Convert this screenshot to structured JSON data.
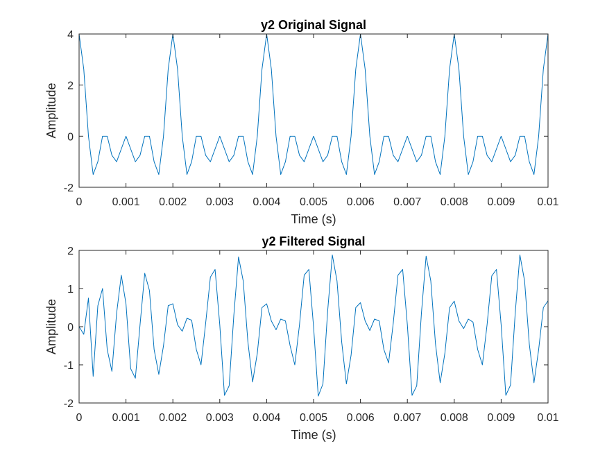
{
  "colors": {
    "series": "#0072bd",
    "axis": "#262626",
    "background": "#ffffff"
  },
  "chart_data": [
    {
      "type": "line",
      "title": "y2 Original Signal",
      "xlabel": "Time (s)",
      "ylabel": "Amplitude",
      "xlim": [
        0,
        0.01
      ],
      "ylim": [
        -2,
        4
      ],
      "xticks": [
        0,
        0.001,
        0.002,
        0.003,
        0.004,
        0.005,
        0.006,
        0.007,
        0.008,
        0.009,
        0.01
      ],
      "xtick_labels": [
        "0",
        "0.001",
        "0.002",
        "0.003",
        "0.004",
        "0.005",
        "0.006",
        "0.007",
        "0.008",
        "0.009",
        "0.01"
      ],
      "yticks": [
        -2,
        0,
        2,
        4
      ],
      "ytick_labels": [
        "-2",
        "0",
        "2",
        "4"
      ],
      "grid": false,
      "series": [
        {
          "x": [
            0,
            0.0001,
            0.0002,
            0.0003,
            0.0004,
            0.0005,
            0.0006,
            0.0007,
            0.0008,
            0.0009,
            0.001,
            0.0011,
            0.0012,
            0.0013,
            0.0014,
            0.0015,
            0.0016,
            0.0017,
            0.0018,
            0.0019,
            0.002,
            0.0021,
            0.0022,
            0.0023,
            0.0024,
            0.0025,
            0.0026,
            0.0027,
            0.0028,
            0.0029,
            0.003,
            0.0031,
            0.0032,
            0.0033,
            0.0034,
            0.0035,
            0.0036,
            0.0037,
            0.0038,
            0.0039,
            0.004,
            0.0041,
            0.0042,
            0.0043,
            0.0044,
            0.0045,
            0.0046,
            0.0047,
            0.0048,
            0.0049,
            0.005,
            0.0051,
            0.0052,
            0.0053,
            0.0054,
            0.0055,
            0.0056,
            0.0057,
            0.0058,
            0.0059,
            0.006,
            0.0061,
            0.0062,
            0.0063,
            0.0064,
            0.0065,
            0.0066,
            0.0067,
            0.0068,
            0.0069,
            0.007,
            0.0071,
            0.0072,
            0.0073,
            0.0074,
            0.0075,
            0.0076,
            0.0077,
            0.0078,
            0.0079,
            0.008,
            0.0081,
            0.0082,
            0.0083,
            0.0084,
            0.0085,
            0.0086,
            0.0087,
            0.0088,
            0.0089,
            0.009,
            0.0091,
            0.0092,
            0.0093,
            0.0094,
            0.0095,
            0.0096,
            0.0097,
            0.0098,
            0.0099,
            0.01
          ],
          "y": [
            4,
            2.62,
            0,
            -1.5,
            -1,
            0,
            0,
            -0.75,
            -1,
            -0.5,
            0,
            -0.5,
            -1,
            -0.75,
            0,
            0,
            -1,
            -1.5,
            0,
            2.62,
            4,
            2.62,
            0,
            -1.5,
            -1,
            0,
            0,
            -0.75,
            -1,
            -0.5,
            0,
            -0.5,
            -1,
            -0.75,
            0,
            0,
            -1,
            -1.5,
            0,
            2.62,
            4,
            2.62,
            0,
            -1.5,
            -1,
            0,
            0,
            -0.75,
            -1,
            -0.5,
            0,
            -0.5,
            -1,
            -0.75,
            0,
            0,
            -1,
            -1.5,
            0,
            2.62,
            4,
            2.62,
            0,
            -1.5,
            -1,
            0,
            0,
            -0.75,
            -1,
            -0.5,
            0,
            -0.5,
            -1,
            -0.75,
            0,
            0,
            -1,
            -1.5,
            0,
            2.62,
            4,
            2.62,
            0,
            -1.5,
            -1,
            0,
            0,
            -0.75,
            -1,
            -0.5,
            0,
            -0.5,
            -1,
            -0.75,
            0,
            0,
            -1,
            -1.5,
            0,
            2.62,
            4
          ]
        }
      ]
    },
    {
      "type": "line",
      "title": "y2 Filtered Signal",
      "xlabel": "Time (s)",
      "ylabel": "Amplitude",
      "xlim": [
        0,
        0.01
      ],
      "ylim": [
        -2,
        2
      ],
      "xticks": [
        0,
        0.001,
        0.002,
        0.003,
        0.004,
        0.005,
        0.006,
        0.007,
        0.008,
        0.009,
        0.01
      ],
      "xtick_labels": [
        "0",
        "0.001",
        "0.002",
        "0.003",
        "0.004",
        "0.005",
        "0.006",
        "0.007",
        "0.008",
        "0.009",
        "0.01"
      ],
      "yticks": [
        -2,
        -1,
        0,
        1,
        2
      ],
      "ytick_labels": [
        "-2",
        "-1",
        "0",
        "1",
        "2"
      ],
      "grid": false,
      "series": [
        {
          "x": [
            0,
            0.0001,
            0.0002,
            0.0003,
            0.0004,
            0.0005,
            0.0006,
            0.0007,
            0.0008,
            0.0009,
            0.001,
            0.0011,
            0.0012,
            0.0013,
            0.0014,
            0.0015,
            0.0016,
            0.0017,
            0.0018,
            0.0019,
            0.002,
            0.0021,
            0.0022,
            0.0023,
            0.0024,
            0.0025,
            0.0026,
            0.0027,
            0.0028,
            0.0029,
            0.003,
            0.0031,
            0.0032,
            0.0033,
            0.0034,
            0.0035,
            0.0036,
            0.0037,
            0.0038,
            0.0039,
            0.004,
            0.0041,
            0.0042,
            0.0043,
            0.0044,
            0.0045,
            0.0046,
            0.0047,
            0.0048,
            0.0049,
            0.005,
            0.0051,
            0.0052,
            0.0053,
            0.0054,
            0.0055,
            0.0056,
            0.0057,
            0.0058,
            0.0059,
            0.006,
            0.0061,
            0.0062,
            0.0063,
            0.0064,
            0.0065,
            0.0066,
            0.0067,
            0.0068,
            0.0069,
            0.007,
            0.0071,
            0.0072,
            0.0073,
            0.0074,
            0.0075,
            0.0076,
            0.0077,
            0.0078,
            0.0079,
            0.008,
            0.0081,
            0.0082,
            0.0083,
            0.0084,
            0.0085,
            0.0086,
            0.0087,
            0.0088,
            0.0089,
            0.009,
            0.0091,
            0.0092,
            0.0093,
            0.0094,
            0.0095,
            0.0096,
            0.0097,
            0.0098,
            0.0099,
            0.01
          ],
          "y": [
            0,
            -0.2,
            0.75,
            -1.3,
            0.55,
            1.0,
            -0.6,
            -1.17,
            0.35,
            1.35,
            0.6,
            -1.1,
            -1.35,
            0.05,
            1.4,
            0.95,
            -0.6,
            -1.25,
            -0.5,
            0.55,
            0.6,
            0.05,
            -0.12,
            0.22,
            0.17,
            -0.6,
            -1.0,
            0.1,
            1.3,
            1.5,
            0.05,
            -1.8,
            -1.55,
            0.3,
            1.83,
            1.2,
            -0.4,
            -1.45,
            -0.7,
            0.5,
            0.6,
            0.15,
            -0.08,
            0.2,
            0.15,
            -0.5,
            -1.0,
            0.05,
            1.35,
            1.5,
            0.0,
            -1.82,
            -1.5,
            0.4,
            1.88,
            1.2,
            -0.4,
            -1.5,
            -0.75,
            0.5,
            0.63,
            0.15,
            -0.1,
            0.2,
            0.15,
            -0.6,
            -0.95,
            0.1,
            1.35,
            1.5,
            0.05,
            -1.8,
            -1.55,
            0.35,
            1.85,
            1.2,
            -0.45,
            -1.47,
            -0.7,
            0.5,
            0.67,
            0.15,
            -0.05,
            0.2,
            0.12,
            -0.6,
            -1.0,
            0.05,
            1.33,
            1.5,
            0.05,
            -1.8,
            -1.53,
            0.35,
            1.88,
            1.2,
            -0.45,
            -1.47,
            -0.6,
            0.5,
            0.68
          ]
        }
      ]
    }
  ]
}
